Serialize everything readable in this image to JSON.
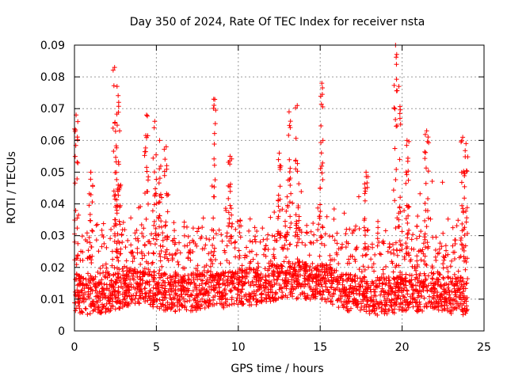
{
  "chart_data": {
    "type": "scatter",
    "title": "Day 350 of 2024, Rate Of TEC Index for receiver nsta",
    "xlabel": "GPS time / hours",
    "ylabel": "ROTI / TECUs",
    "xlim": [
      0,
      25
    ],
    "ylim": [
      0,
      0.09
    ],
    "x_ticks": [
      "0",
      "5",
      "10",
      "15",
      "20",
      "25"
    ],
    "y_ticks": [
      "0",
      "0.01",
      "0.02",
      "0.03",
      "0.04",
      "0.05",
      "0.06",
      "0.07",
      "0.08",
      "0.09"
    ],
    "grid": true,
    "marker": "+",
    "series_color": "#ff0000",
    "baseline_profile": {
      "hours": [
        0,
        1,
        2,
        3,
        4,
        5,
        6,
        7,
        8,
        9,
        10,
        11,
        12,
        13,
        14,
        15,
        16,
        17,
        18,
        19,
        20,
        21,
        22,
        23,
        24
      ],
      "typical_roti": [
        0.012,
        0.011,
        0.012,
        0.013,
        0.014,
        0.013,
        0.012,
        0.012,
        0.013,
        0.013,
        0.014,
        0.014,
        0.015,
        0.016,
        0.016,
        0.016,
        0.013,
        0.012,
        0.011,
        0.011,
        0.012,
        0.012,
        0.013,
        0.011,
        0.011
      ]
    },
    "spikes": [
      {
        "x": 0.1,
        "y": 0.068
      },
      {
        "x": 1.0,
        "y": 0.05
      },
      {
        "x": 2.45,
        "y": 0.083
      },
      {
        "x": 2.6,
        "y": 0.077
      },
      {
        "x": 2.7,
        "y": 0.072
      },
      {
        "x": 4.4,
        "y": 0.068
      },
      {
        "x": 4.9,
        "y": 0.066
      },
      {
        "x": 5.2,
        "y": 0.06
      },
      {
        "x": 5.6,
        "y": 0.058
      },
      {
        "x": 8.5,
        "y": 0.073
      },
      {
        "x": 9.5,
        "y": 0.055
      },
      {
        "x": 12.5,
        "y": 0.056
      },
      {
        "x": 13.1,
        "y": 0.069
      },
      {
        "x": 13.6,
        "y": 0.071
      },
      {
        "x": 15.1,
        "y": 0.078
      },
      {
        "x": 17.8,
        "y": 0.05
      },
      {
        "x": 19.6,
        "y": 0.09
      },
      {
        "x": 19.8,
        "y": 0.077
      },
      {
        "x": 20.3,
        "y": 0.06
      },
      {
        "x": 21.5,
        "y": 0.063
      },
      {
        "x": 23.7,
        "y": 0.061
      },
      {
        "x": 23.9,
        "y": 0.059
      }
    ]
  }
}
